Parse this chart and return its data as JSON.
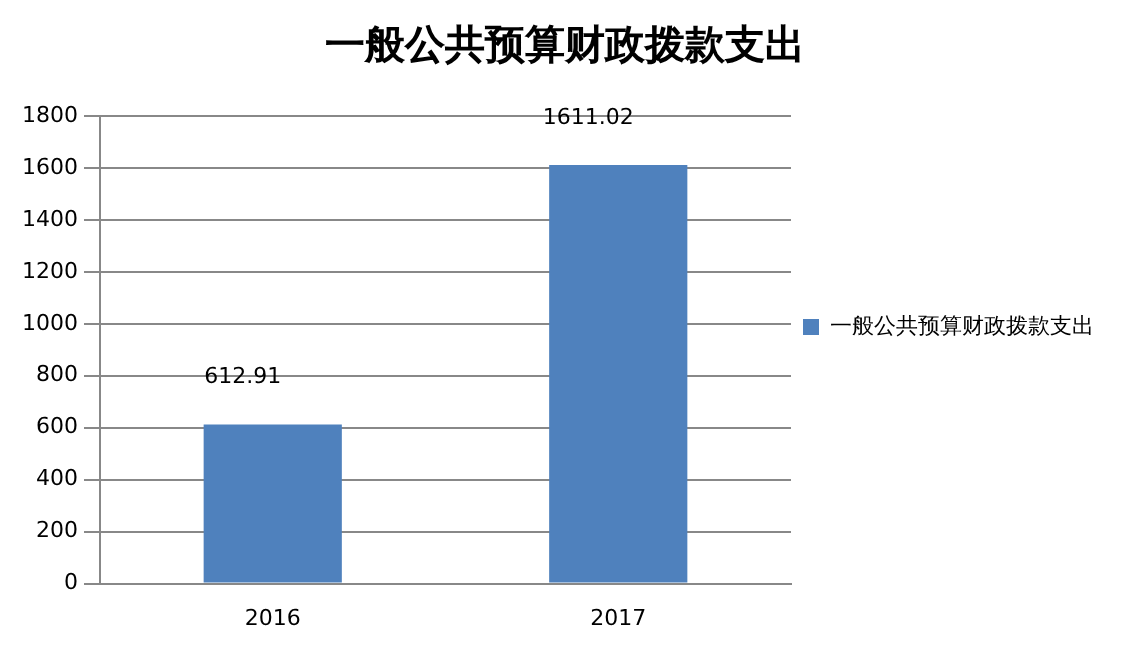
{
  "chart_data": {
    "type": "bar",
    "title": "一般公共预算财政拨款支出",
    "categories": [
      "2016",
      "2017"
    ],
    "series": [
      {
        "name": "一般公共预算财政拨款支出",
        "color": "#4f81bd",
        "values": [
          612.91,
          1611.02
        ]
      }
    ],
    "ylim": [
      0,
      1800
    ],
    "yticks": [
      0,
      200,
      400,
      600,
      800,
      1000,
      1200,
      1400,
      1600,
      1800
    ],
    "grid": "y",
    "legend": "right",
    "data_labels": true
  }
}
